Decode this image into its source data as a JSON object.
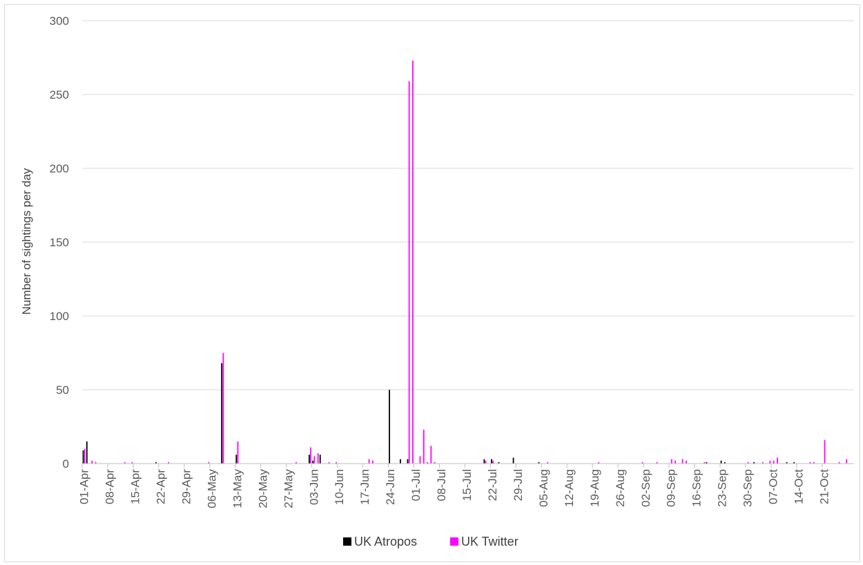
{
  "chart_data": {
    "type": "bar",
    "title": "",
    "xlabel": "",
    "ylabel": "Number of sightings per day",
    "ylim": [
      0,
      300
    ],
    "yticks": [
      0,
      50,
      100,
      150,
      200,
      250,
      300
    ],
    "grid": true,
    "legend_position": "bottom",
    "x_tick_labels": [
      "01-Apr",
      "08-Apr",
      "15-Apr",
      "22-Apr",
      "29-Apr",
      "06-May",
      "13-May",
      "20-May",
      "27-May",
      "03-Jun",
      "10-Jun",
      "17-Jun",
      "24-Jun",
      "01-Jul",
      "08-Jul",
      "15-Jul",
      "22-Jul",
      "29-Jul",
      "05-Aug",
      "12-Aug",
      "19-Aug",
      "26-Aug",
      "02-Sep",
      "09-Sep",
      "16-Sep",
      "23-Sep",
      "30-Sep",
      "07-Oct",
      "14-Oct",
      "21-Oct"
    ],
    "series": [
      {
        "name": "UK Atropos",
        "color": "#000000",
        "points": [
          {
            "x": "01-Apr",
            "y": 9
          },
          {
            "x": "02-Apr",
            "y": 15
          },
          {
            "x": "21-Apr",
            "y": 1
          },
          {
            "x": "09-May",
            "y": 68
          },
          {
            "x": "13-May",
            "y": 6
          },
          {
            "x": "02-Jun",
            "y": 6
          },
          {
            "x": "03-Jun",
            "y": 2
          },
          {
            "x": "05-Jun",
            "y": 6
          },
          {
            "x": "24-Jun",
            "y": 50
          },
          {
            "x": "27-Jun",
            "y": 3
          },
          {
            "x": "29-Jun",
            "y": 3
          },
          {
            "x": "20-Jul",
            "y": 3
          },
          {
            "x": "22-Jul",
            "y": 3
          },
          {
            "x": "24-Jul",
            "y": 1
          },
          {
            "x": "28-Jul",
            "y": 4
          },
          {
            "x": "04-Aug",
            "y": 1
          },
          {
            "x": "19-Sep",
            "y": 1
          },
          {
            "x": "23-Sep",
            "y": 2
          },
          {
            "x": "24-Sep",
            "y": 1
          },
          {
            "x": "02-Oct",
            "y": 1
          },
          {
            "x": "11-Oct",
            "y": 1
          },
          {
            "x": "13-Oct",
            "y": 1
          }
        ]
      },
      {
        "name": "UK Twitter",
        "color": "#ff00ff",
        "points": [
          {
            "x": "01-Apr",
            "y": 10
          },
          {
            "x": "03-Apr",
            "y": 2
          },
          {
            "x": "04-Apr",
            "y": 1
          },
          {
            "x": "12-Apr",
            "y": 1
          },
          {
            "x": "14-Apr",
            "y": 1
          },
          {
            "x": "24-Apr",
            "y": 1
          },
          {
            "x": "05-May",
            "y": 1
          },
          {
            "x": "09-May",
            "y": 75
          },
          {
            "x": "13-May",
            "y": 15
          },
          {
            "x": "29-May",
            "y": 1
          },
          {
            "x": "02-Jun",
            "y": 11
          },
          {
            "x": "03-Jun",
            "y": 5
          },
          {
            "x": "04-Jun",
            "y": 7
          },
          {
            "x": "07-Jun",
            "y": 1
          },
          {
            "x": "09-Jun",
            "y": 1
          },
          {
            "x": "18-Jun",
            "y": 3
          },
          {
            "x": "19-Jun",
            "y": 2
          },
          {
            "x": "29-Jun",
            "y": 259
          },
          {
            "x": "30-Jun",
            "y": 273
          },
          {
            "x": "02-Jul",
            "y": 5
          },
          {
            "x": "03-Jul",
            "y": 23
          },
          {
            "x": "04-Jul",
            "y": 1
          },
          {
            "x": "05-Jul",
            "y": 12
          },
          {
            "x": "06-Jul",
            "y": 1
          },
          {
            "x": "20-Jul",
            "y": 2
          },
          {
            "x": "22-Jul",
            "y": 2
          },
          {
            "x": "06-Aug",
            "y": 1
          },
          {
            "x": "20-Aug",
            "y": 1
          },
          {
            "x": "01-Sep",
            "y": 1
          },
          {
            "x": "05-Sep",
            "y": 1
          },
          {
            "x": "09-Sep",
            "y": 3
          },
          {
            "x": "10-Sep",
            "y": 2
          },
          {
            "x": "12-Sep",
            "y": 3
          },
          {
            "x": "13-Sep",
            "y": 2
          },
          {
            "x": "18-Sep",
            "y": 1
          },
          {
            "x": "30-Sep",
            "y": 1
          },
          {
            "x": "04-Oct",
            "y": 1
          },
          {
            "x": "06-Oct",
            "y": 2
          },
          {
            "x": "07-Oct",
            "y": 2
          },
          {
            "x": "08-Oct",
            "y": 4
          },
          {
            "x": "17-Oct",
            "y": 1
          },
          {
            "x": "18-Oct",
            "y": 1
          },
          {
            "x": "21-Oct",
            "y": 16
          },
          {
            "x": "25-Oct",
            "y": 1
          },
          {
            "x": "27-Oct",
            "y": 3
          }
        ]
      }
    ]
  }
}
